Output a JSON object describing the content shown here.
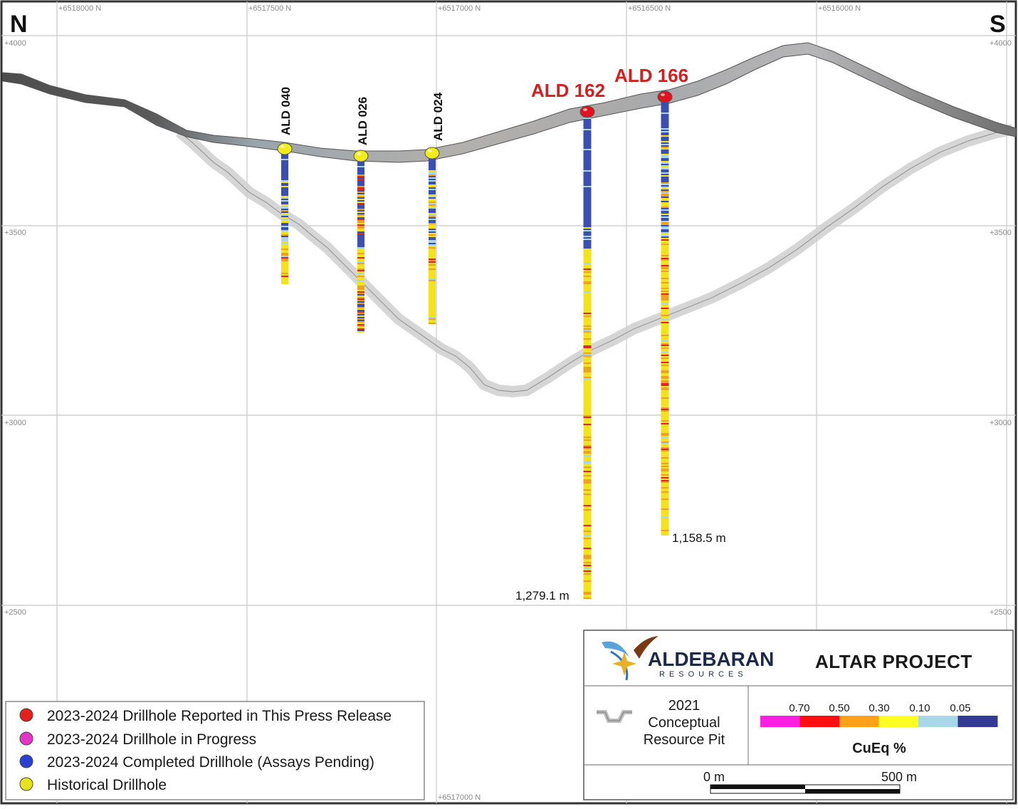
{
  "directions": {
    "left": "N",
    "right": "S"
  },
  "northing_ticks": [
    "+6518000 N",
    "+6517500 N",
    "+6517000 N",
    "+6516500 N",
    "+6516000 N"
  ],
  "bottom_tick": "+6517000 N",
  "elevation_ticks": [
    "+4000",
    "+3500",
    "+3000",
    "+2500"
  ],
  "drillholes": [
    {
      "id": "ALD 040",
      "type": "historical"
    },
    {
      "id": "ALD 026",
      "type": "historical"
    },
    {
      "id": "ALD 024",
      "type": "historical"
    },
    {
      "id": "ALD 162",
      "type": "reported",
      "depth_label": "1,279.1 m"
    },
    {
      "id": "ALD 166",
      "type": "reported",
      "depth_label": "1,158.5 m"
    }
  ],
  "legend": [
    {
      "label": "2023-2024 Drillhole Reported in This Press Release",
      "color": "#e3201b"
    },
    {
      "label": "2023-2024 Drillhole in Progress",
      "color": "#e535c8"
    },
    {
      "label": "2023-2024 Completed Drillhole (Assays Pending)",
      "color": "#2a3fd6"
    },
    {
      "label": "Historical Drillhole",
      "color": "#e8e21a"
    }
  ],
  "title_block": {
    "company": "ALDEBARAN",
    "company_sub": "RESOURCES",
    "project": "ALTAR PROJECT",
    "pit_legend": [
      "2021",
      "Conceptual",
      "Resource Pit"
    ],
    "colorbar_title": "CuEq %",
    "colorbar_labels": [
      "0.70",
      "0.50",
      "0.30",
      "0.10",
      "0.05"
    ],
    "colorbar_colors": [
      "#ff1fe0",
      "#ff1010",
      "#ffa21a",
      "#ffff22",
      "#a8d8e8",
      "#333a94"
    ],
    "scale_labels": [
      "0 m",
      "500 m"
    ]
  },
  "colors": {
    "historical_collar": "#f2ec1c",
    "reported_collar": "#e0141e",
    "hole_blue": "#3b4fb0",
    "hole_yellow": "#f5e21a"
  }
}
